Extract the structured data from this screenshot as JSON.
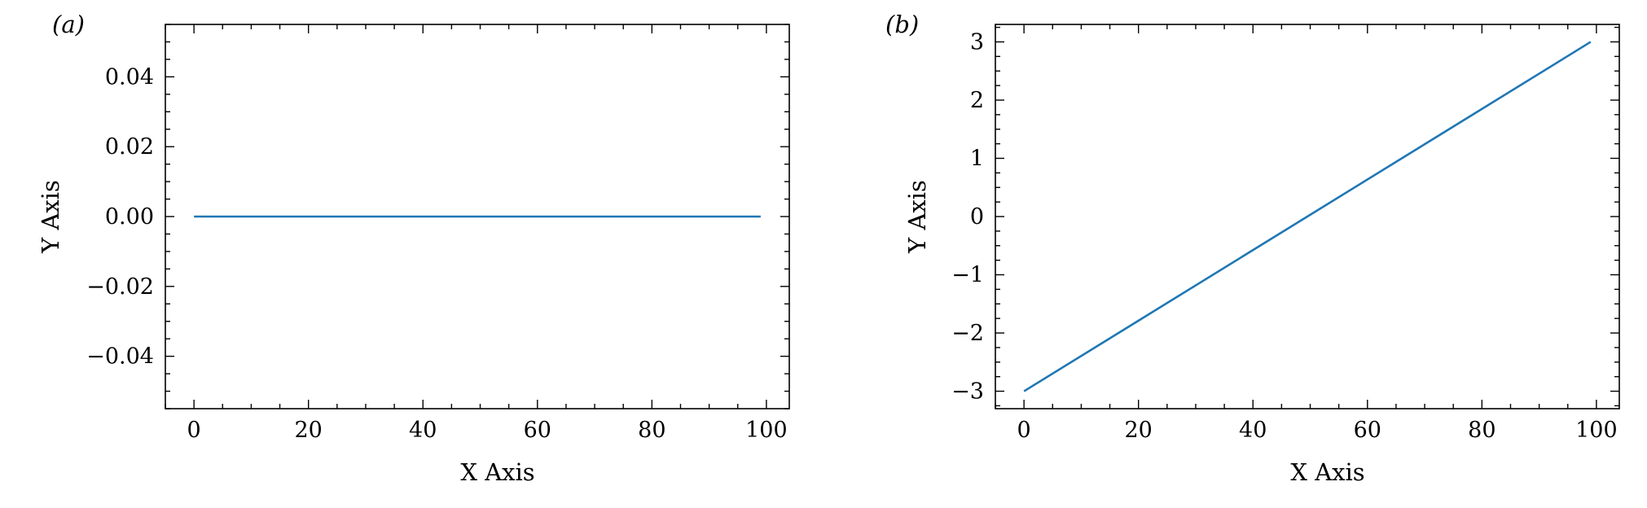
{
  "chart_data": [
    {
      "type": "line",
      "panel_label": "(a)",
      "xlabel": "X Axis",
      "ylabel": "Y Axis",
      "xlim": [
        -5,
        104
      ],
      "ylim": [
        -0.055,
        0.055
      ],
      "xticks": [
        0,
        20,
        40,
        60,
        80,
        100
      ],
      "xtick_labels": [
        "0",
        "20",
        "40",
        "60",
        "80",
        "100"
      ],
      "xminor_step": 5,
      "yticks": [
        -0.04,
        -0.02,
        0.0,
        0.02,
        0.04
      ],
      "ytick_labels": [
        "−0.04",
        "−0.02",
        "0.00",
        "0.02",
        "0.04"
      ],
      "yminor_step": 0.005,
      "grid": false,
      "series": [
        {
          "color": "#1f77b4",
          "x": [
            0,
            99
          ],
          "y": [
            0,
            0
          ]
        }
      ]
    },
    {
      "type": "line",
      "panel_label": "(b)",
      "xlabel": "X Axis",
      "ylabel": "Y Axis",
      "xlim": [
        -5,
        104
      ],
      "ylim": [
        -3.3,
        3.3
      ],
      "xticks": [
        0,
        20,
        40,
        60,
        80,
        100
      ],
      "xtick_labels": [
        "0",
        "20",
        "40",
        "60",
        "80",
        "100"
      ],
      "xminor_step": 5,
      "yticks": [
        -3,
        -2,
        -1,
        0,
        1,
        2,
        3
      ],
      "ytick_labels": [
        "−3",
        "−2",
        "−1",
        "0",
        "1",
        "2",
        "3"
      ],
      "yminor_step": 0.25,
      "grid": false,
      "series": [
        {
          "color": "#1f77b4",
          "x": [
            0,
            99
          ],
          "y": [
            -3,
            3
          ]
        }
      ]
    }
  ]
}
